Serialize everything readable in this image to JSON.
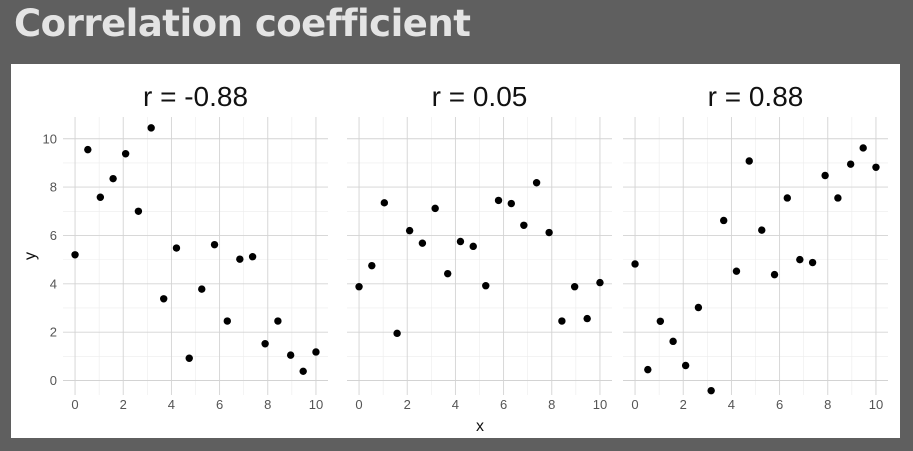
{
  "slide": {
    "title": "Correlation coefficient"
  },
  "chart_data": {
    "type": "scatter",
    "facet": "panels",
    "xlabel": "x",
    "ylabel": "y",
    "xlim": [
      -0.5,
      10.5
    ],
    "ylim": [
      -0.6,
      10.9
    ],
    "xticks": [
      0,
      2,
      4,
      6,
      8,
      10
    ],
    "yticks": [
      0,
      2,
      4,
      6,
      8,
      10
    ],
    "grid": true,
    "point_color": "#000000",
    "panels": [
      {
        "title": "r = -0.88",
        "points": [
          [
            0,
            5.2
          ],
          [
            0.53,
            9.55
          ],
          [
            1.05,
            7.58
          ],
          [
            1.58,
            8.35
          ],
          [
            2.1,
            9.38
          ],
          [
            2.63,
            7.0
          ],
          [
            3.16,
            10.45
          ],
          [
            3.68,
            3.38
          ],
          [
            4.21,
            5.48
          ],
          [
            4.74,
            0.92
          ],
          [
            5.26,
            3.78
          ],
          [
            5.79,
            5.62
          ],
          [
            6.32,
            2.46
          ],
          [
            6.84,
            5.02
          ],
          [
            7.37,
            5.12
          ],
          [
            7.89,
            1.52
          ],
          [
            8.42,
            2.46
          ],
          [
            8.95,
            1.05
          ],
          [
            9.47,
            0.38
          ],
          [
            10,
            1.18
          ]
        ]
      },
      {
        "title": "r = 0.05",
        "points": [
          [
            0,
            3.88
          ],
          [
            0.53,
            4.75
          ],
          [
            1.05,
            7.35
          ],
          [
            1.58,
            1.95
          ],
          [
            2.1,
            6.2
          ],
          [
            2.63,
            5.68
          ],
          [
            3.16,
            7.12
          ],
          [
            3.68,
            4.42
          ],
          [
            4.21,
            5.75
          ],
          [
            4.74,
            5.55
          ],
          [
            5.26,
            3.92
          ],
          [
            5.79,
            7.45
          ],
          [
            6.32,
            7.32
          ],
          [
            6.84,
            6.42
          ],
          [
            7.37,
            8.18
          ],
          [
            7.89,
            6.12
          ],
          [
            8.42,
            2.46
          ],
          [
            8.95,
            3.88
          ],
          [
            9.47,
            2.56
          ],
          [
            10,
            4.05
          ]
        ]
      },
      {
        "title": "r = 0.88",
        "points": [
          [
            0,
            4.82
          ],
          [
            0.53,
            0.45
          ],
          [
            1.05,
            2.45
          ],
          [
            1.58,
            1.62
          ],
          [
            2.1,
            0.62
          ],
          [
            2.63,
            3.02
          ],
          [
            3.16,
            -0.42
          ],
          [
            3.68,
            6.62
          ],
          [
            4.21,
            4.52
          ],
          [
            4.74,
            9.08
          ],
          [
            5.26,
            6.22
          ],
          [
            5.79,
            4.38
          ],
          [
            6.32,
            7.55
          ],
          [
            6.84,
            5.0
          ],
          [
            7.37,
            4.88
          ],
          [
            7.89,
            8.48
          ],
          [
            8.42,
            7.55
          ],
          [
            8.95,
            8.95
          ],
          [
            9.47,
            9.62
          ],
          [
            10,
            8.82
          ]
        ]
      }
    ]
  }
}
